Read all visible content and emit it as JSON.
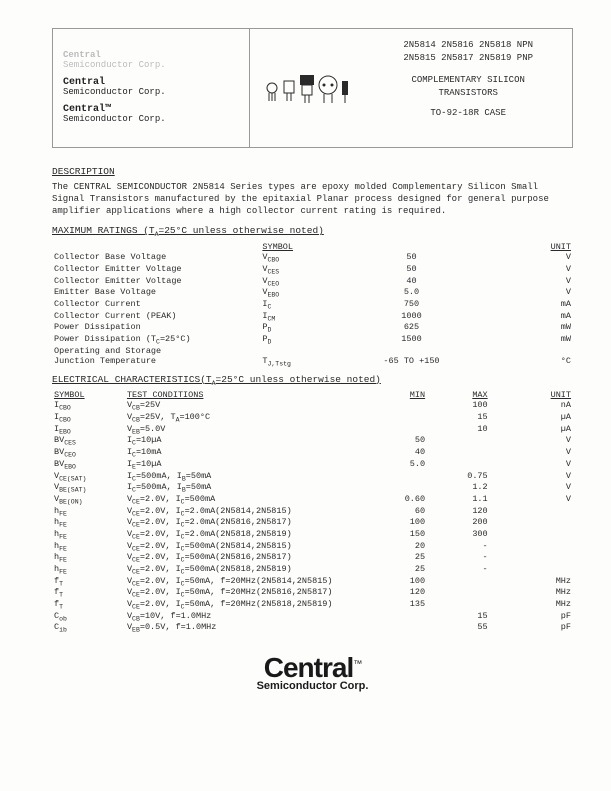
{
  "header": {
    "logo_lines": [
      {
        "brand": "Central",
        "sub": "Semiconductor Corp.",
        "cls": "logo-faint"
      },
      {
        "brand": "Central",
        "sub": "Semiconductor Corp.",
        "cls": "logo-dark"
      },
      {
        "brand": "Central™",
        "sub": "Semiconductor Corp.",
        "cls": "logo-dark"
      }
    ],
    "parts_row1": "2N5814  2N5816  2N5818  NPN",
    "parts_row2": "2N5815  2N5817  2N5819  PNP",
    "title1": "COMPLEMENTARY SILICON",
    "title2": "TRANSISTORS",
    "case": "TO-92-18R CASE"
  },
  "desc_title": "DESCRIPTION",
  "desc_text": "The CENTRAL SEMICONDUCTOR 2N5814 Series types are epoxy molded Complementary Silicon Small Signal Transistors manufactured by the epitaxial Planar process designed for general purpose amplifier applications where a high collector current rating is required.",
  "max_title": "MAXIMUM RATINGS (T",
  "max_title_sub": "A",
  "max_title_rest": "=25°C unless otherwise noted)",
  "max_head": {
    "c2": "SYMBOL",
    "c4": "UNIT"
  },
  "max_rows": [
    {
      "p": "Collector Base Voltage",
      "s": "V",
      "ss": "CBO",
      "v": "50",
      "u": "V"
    },
    {
      "p": "Collector Emitter Voltage",
      "s": "V",
      "ss": "CES",
      "v": "50",
      "u": "V"
    },
    {
      "p": "Collector Emitter Voltage",
      "s": "V",
      "ss": "CEO",
      "v": "40",
      "u": "V"
    },
    {
      "p": "Emitter Base Voltage",
      "s": "V",
      "ss": "EBO",
      "v": "5.0",
      "u": "V"
    },
    {
      "p": "Collector Current",
      "s": "I",
      "ss": "C",
      "v": "750",
      "u": "mA"
    },
    {
      "p": "Collector Current (PEAK)",
      "s": "I",
      "ss": "CM",
      "v": "1000",
      "u": "mA"
    },
    {
      "p": "Power Dissipation",
      "s": "P",
      "ss": "D",
      "v": "625",
      "u": "mW"
    },
    {
      "p": "Power Dissipation (T_C=25°C)",
      "s": "P",
      "ss": "D",
      "v": "1500",
      "u": "mW"
    },
    {
      "p": "Operating and Storage",
      "s": "",
      "ss": "",
      "v": "",
      "u": ""
    },
    {
      "p": "Junction Temperature",
      "s": "T",
      "ss": "J,Tstg",
      "v": "-65 TO +150",
      "u": "°C"
    }
  ],
  "elec_title": "ELECTRICAL CHARACTERISTICS(T",
  "elec_title_sub": "A",
  "elec_title_rest": "=25°C unless otherwise noted)",
  "elec_head": {
    "c1": "SYMBOL",
    "c2": "TEST CONDITIONS",
    "c3": "MIN",
    "c4": "MAX",
    "c5": "UNIT"
  },
  "elec_rows": [
    {
      "s": "I",
      "ss": "CBO",
      "c": "V_CB=25V",
      "min": "",
      "max": "100",
      "u": "nA"
    },
    {
      "s": "I",
      "ss": "CBO",
      "c": "V_CB=25V, T_A=100°C",
      "min": "",
      "max": "15",
      "u": "µA"
    },
    {
      "s": "I",
      "ss": "EBO",
      "c": "V_EB=5.0V",
      "min": "",
      "max": "10",
      "u": "µA"
    },
    {
      "s": "BV",
      "ss": "CES",
      "c": "I_C=10µA",
      "min": "50",
      "max": "",
      "u": "V"
    },
    {
      "s": "BV",
      "ss": "CEO",
      "c": "I_C=10mA",
      "min": "40",
      "max": "",
      "u": "V"
    },
    {
      "s": "BV",
      "ss": "EBO",
      "c": "I_E=10µA",
      "min": "5.0",
      "max": "",
      "u": "V"
    },
    {
      "s": "V",
      "ss": "CE(SAT)",
      "c": "I_C=500mA, I_B=50mA",
      "min": "",
      "max": "0.75",
      "u": "V"
    },
    {
      "s": "V",
      "ss": "BE(SAT)",
      "c": "I_C=500mA, I_B=50mA",
      "min": "",
      "max": "1.2",
      "u": "V"
    },
    {
      "s": "V",
      "ss": "BE(ON)",
      "c": "V_CE=2.0V, I_C=500mA",
      "min": "0.60",
      "max": "1.1",
      "u": "V"
    },
    {
      "s": "h",
      "ss": "FE",
      "c": "V_CE=2.0V, I_C=2.0mA(2N5814,2N5815)",
      "min": "60",
      "max": "120",
      "u": ""
    },
    {
      "s": "h",
      "ss": "FE",
      "c": "V_CE=2.0V, I_C=2.0mA(2N5816,2N5817)",
      "min": "100",
      "max": "200",
      "u": ""
    },
    {
      "s": "h",
      "ss": "FE",
      "c": "V_CE=2.0V, I_C=2.0mA(2N5818,2N5819)",
      "min": "150",
      "max": "300",
      "u": ""
    },
    {
      "s": "h",
      "ss": "FE",
      "c": "V_CE=2.0V, I_C=500mA(2N5814,2N5815)",
      "min": "20",
      "max": "-",
      "u": ""
    },
    {
      "s": "h",
      "ss": "FE",
      "c": "V_CE=2.0V, I_C=500mA(2N5816,2N5817)",
      "min": "25",
      "max": "-",
      "u": ""
    },
    {
      "s": "h",
      "ss": "FE",
      "c": "V_CE=2.0V, I_C=500mA(2N5818,2N5819)",
      "min": "25",
      "max": "-",
      "u": ""
    },
    {
      "s": "f",
      "ss": "T",
      "c": "V_CE=2.0V, I_C=50mA, f=20MHz(2N5814,2N5815)",
      "min": "100",
      "max": "",
      "u": "MHz"
    },
    {
      "s": "f",
      "ss": "T",
      "c": "V_CE=2.0V, I_C=50mA, f=20MHz(2N5816,2N5817)",
      "min": "120",
      "max": "",
      "u": "MHz"
    },
    {
      "s": "f",
      "ss": "T",
      "c": "V_CE=2.0V, I_C=50mA, f=20MHz(2N5818,2N5819)",
      "min": "135",
      "max": "",
      "u": "MHz"
    },
    {
      "s": "C",
      "ss": "ob",
      "c": "V_CB=10V, f=1.0MHz",
      "min": "",
      "max": "15",
      "u": "pF"
    },
    {
      "s": "C",
      "ss": "ib",
      "c": "V_EB=0.5V, f=1.0MHz",
      "min": "",
      "max": "55",
      "u": "pF"
    }
  ],
  "footer": {
    "brand": "Central",
    "tm": "™",
    "sub": "Semiconductor Corp."
  }
}
